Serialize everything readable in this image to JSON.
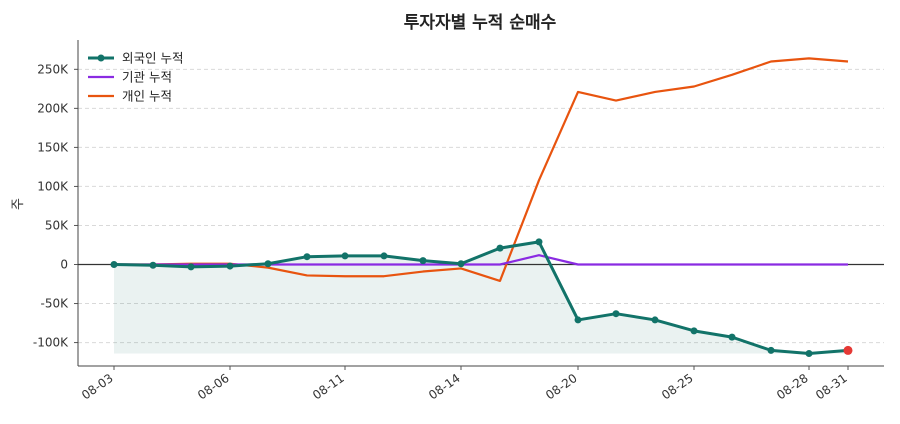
{
  "chart_data": {
    "type": "line",
    "title": "투자자별 누적 순매수",
    "ylabel": "주",
    "xlabel": "",
    "x_ticks": [
      "08-03",
      "08-06",
      "08-11",
      "08-14",
      "08-20",
      "08-25",
      "08-28",
      "08-31"
    ],
    "ylim": [
      -130000,
      285000
    ],
    "y_ticks": [
      -100000,
      -50000,
      0,
      50000,
      100000,
      150000,
      200000,
      250000
    ],
    "y_tick_labels": [
      "-100K",
      "-50K",
      "0",
      "50K",
      "100K",
      "150K",
      "200K",
      "250K"
    ],
    "grid": "horizontal dashed",
    "legend_position": "top-left",
    "dates": [
      "08-03",
      "08-04",
      "08-05",
      "08-06",
      "08-07",
      "08-10",
      "08-11",
      "08-12",
      "08-13",
      "08-14",
      "08-17",
      "08-18",
      "08-20",
      "08-21",
      "08-24",
      "08-25",
      "08-26",
      "08-27",
      "08-28",
      "08-31"
    ],
    "series": [
      {
        "name": "외국인 누적",
        "color": "#127369",
        "marker": "circle",
        "values": [
          0,
          -1000,
          -3000,
          -2000,
          1000,
          10000,
          11000,
          11000,
          5000,
          1000,
          21000,
          29000,
          -71000,
          -63000,
          -71000,
          -85000,
          -93000,
          -110000,
          -114000,
          -110000
        ]
      },
      {
        "name": "기관 누적",
        "color": "#8a2be2",
        "values": [
          0,
          0,
          0,
          0,
          0,
          0,
          0,
          0,
          0,
          0,
          0,
          12000,
          0,
          0,
          0,
          0,
          0,
          0,
          0,
          0
        ]
      },
      {
        "name": "개인 누적",
        "color": "#e8540f",
        "values": [
          0,
          0,
          1000,
          1000,
          -4000,
          -14000,
          -15000,
          -15000,
          -9000,
          -5000,
          -21000,
          108000,
          221000,
          210000,
          221000,
          228000,
          243000,
          260000,
          264000,
          260000
        ]
      }
    ],
    "highlight_last_point_color": "#e53935",
    "fill_color": "#127369"
  }
}
